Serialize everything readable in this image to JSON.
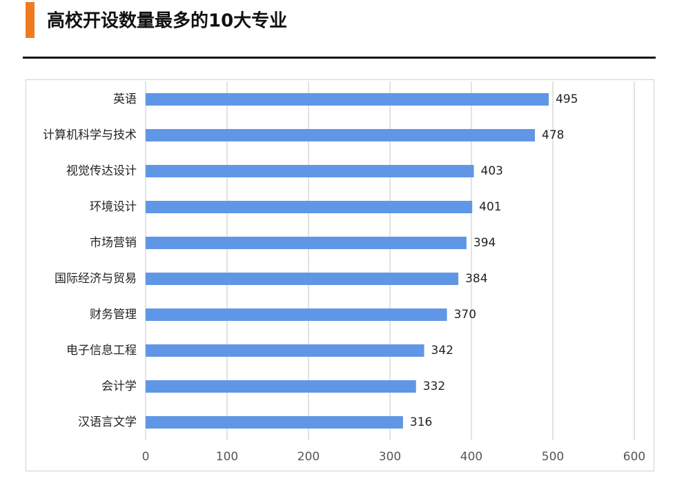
{
  "chart_data": {
    "type": "barh",
    "title": "高校开设数量最多的10大专业",
    "categories": [
      "英语",
      "计算机科学与技术",
      "视觉传达设计",
      "环境设计",
      "市场营销",
      "国际经济与贸易",
      "财务管理",
      "电子信息工程",
      "会计学",
      "汉语言文学"
    ],
    "values": [
      495,
      478,
      403,
      401,
      394,
      384,
      370,
      342,
      332,
      316
    ],
    "color": "#6096e6",
    "xlim": [
      0,
      600
    ],
    "xticks": [
      0,
      100,
      200,
      300,
      400,
      500,
      600
    ],
    "grid": true
  }
}
